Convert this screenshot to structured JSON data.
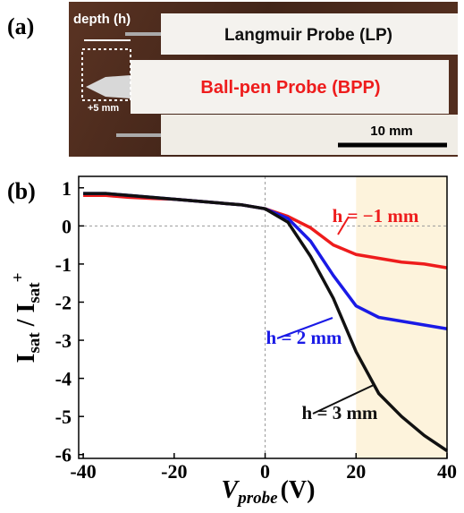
{
  "photo": {
    "panel": "(a)",
    "depth": "depth (h)",
    "offset": "+5 mm",
    "lp": "Langmuir Probe (LP)",
    "bpp": "Ball-pen Probe (BPP)",
    "scale": "10 mm"
  },
  "chart_data": {
    "type": "line",
    "panel": "(b)",
    "xlabel": [
      "V",
      "probe",
      "(V)"
    ],
    "ylabel": [
      "I",
      "sat",
      " / I",
      "sat",
      "+"
    ],
    "x": [
      -40,
      -35,
      -30,
      -25,
      -20,
      -15,
      -10,
      -5,
      0,
      5,
      10,
      15,
      20,
      25,
      30,
      35,
      40
    ],
    "series": [
      {
        "name": "h = −1 mm",
        "color": "#ee1c1c",
        "values": [
          0.8,
          0.8,
          0.75,
          0.72,
          0.7,
          0.65,
          0.6,
          0.55,
          0.45,
          0.25,
          -0.05,
          -0.5,
          -0.75,
          -0.85,
          -0.95,
          -1.0,
          -1.1
        ]
      },
      {
        "name": "h = 2 mm",
        "color": "#1a1ae6",
        "values": [
          0.85,
          0.85,
          0.8,
          0.75,
          0.7,
          0.65,
          0.6,
          0.55,
          0.45,
          0.2,
          -0.4,
          -1.3,
          -2.1,
          -2.4,
          -2.5,
          -2.6,
          -2.7
        ]
      },
      {
        "name": "h = 3 mm",
        "color": "#111111",
        "values": [
          0.85,
          0.85,
          0.8,
          0.75,
          0.7,
          0.65,
          0.6,
          0.55,
          0.45,
          0.1,
          -0.8,
          -1.9,
          -3.3,
          -4.4,
          -5.0,
          -5.5,
          -5.9
        ]
      }
    ],
    "xlim": [
      -41,
      40
    ],
    "ylim": [
      -6.1,
      1.3
    ],
    "xticks": [
      -40,
      -20,
      0,
      20,
      40
    ],
    "yticks": [
      1,
      0,
      -1,
      -2,
      -3,
      -4,
      -5,
      -6
    ],
    "shade": [
      20,
      40
    ],
    "shade_color": "#fdf3dc"
  }
}
